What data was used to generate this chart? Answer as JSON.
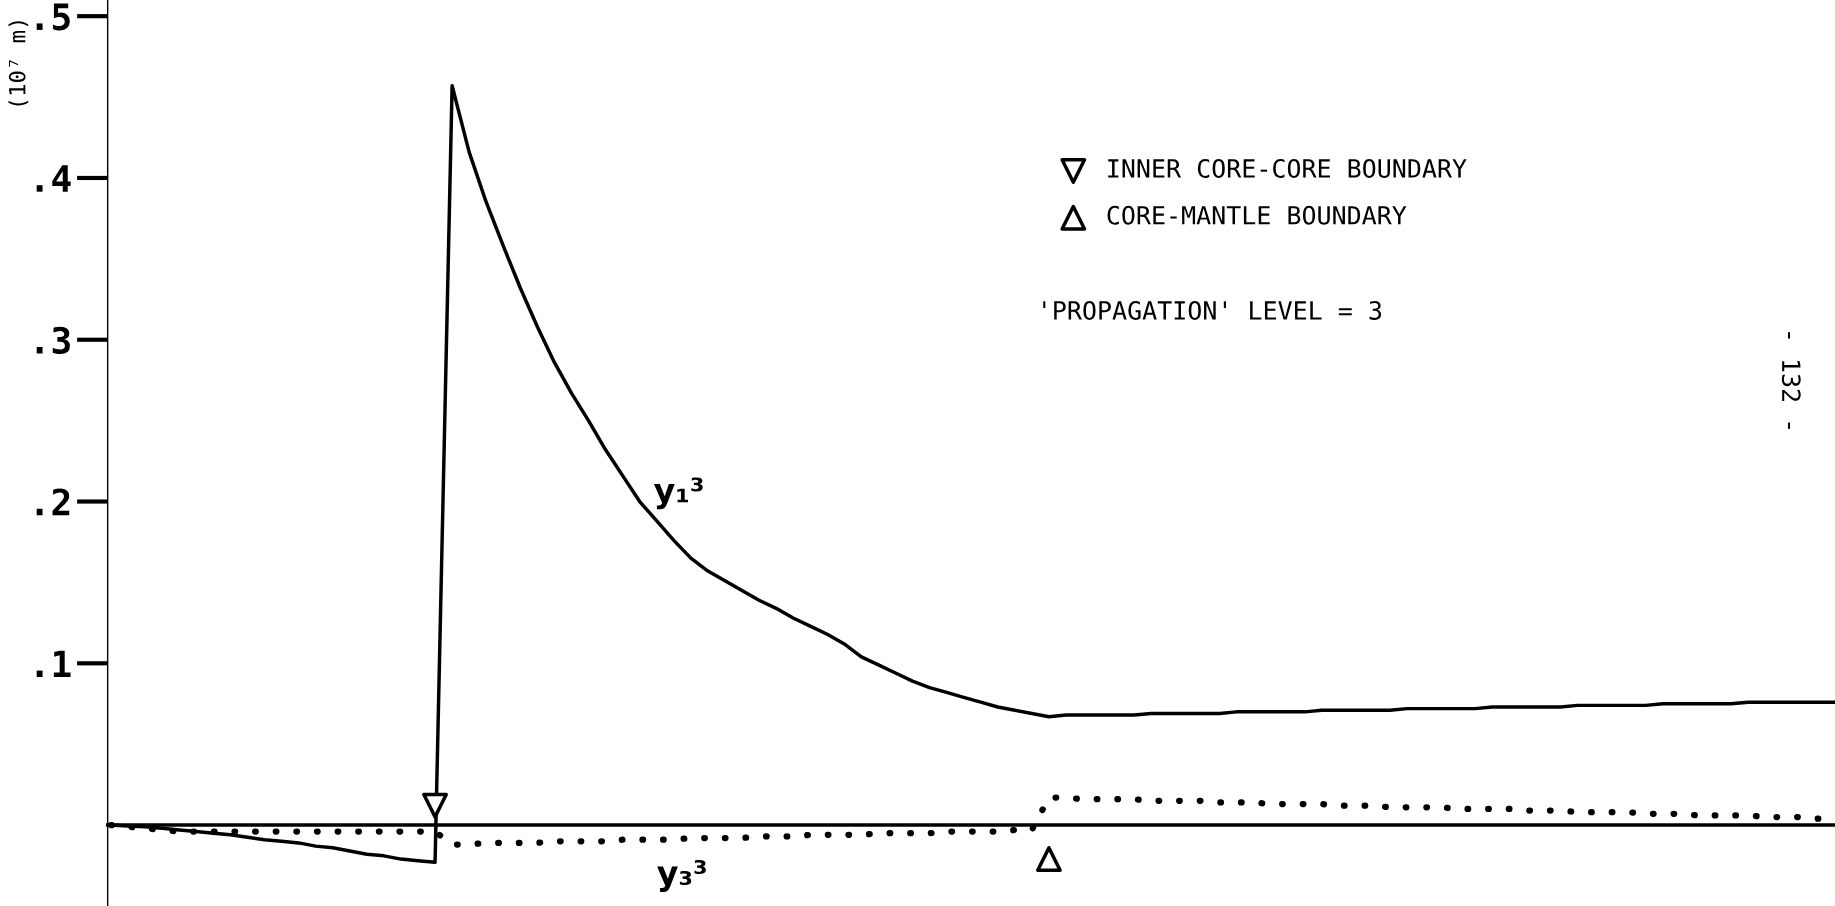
{
  "chart_data": {
    "type": "line",
    "ylabel": "(10⁷ m)",
    "categories": [
      null,
      null,
      null,
      null,
      null,
      null,
      null,
      null,
      null,
      null,
      null,
      null,
      null,
      null,
      null,
      null,
      null,
      null,
      null,
      null,
      null,
      null,
      null,
      null,
      null,
      null,
      null,
      null,
      null,
      null,
      null,
      null,
      null,
      null,
      null,
      null,
      null,
      null,
      null,
      null,
      null,
      null,
      null,
      null,
      null,
      null,
      null,
      null,
      null,
      null,
      null,
      null,
      null,
      null,
      null,
      null,
      null,
      null,
      null,
      null,
      null,
      null,
      null,
      null,
      null,
      null,
      null,
      null,
      null,
      null,
      null,
      null,
      null,
      null,
      null,
      null,
      null,
      null,
      null,
      null,
      null,
      null,
      null,
      null,
      null,
      null,
      null,
      null,
      null,
      null,
      null,
      null,
      null,
      null,
      null,
      null,
      null,
      null,
      null,
      null,
      null,
      null
    ],
    "series": [
      {
        "name": "y₁³",
        "color": "#000000",
        "line_style": "solid",
        "values": [
          0,
          -0.0005,
          -0.001,
          -0.002,
          -0.003,
          -0.004,
          -0.005,
          -0.006,
          -0.0075,
          -0.009,
          -0.01,
          -0.011,
          -0.013,
          -0.014,
          -0.016,
          -0.018,
          -0.019,
          -0.021,
          -0.022,
          -0.023,
          0.457,
          0.416,
          0.385,
          0.358,
          0.332,
          0.308,
          0.286,
          0.267,
          0.25,
          0.232,
          0.216,
          0.2,
          0.188,
          0.176,
          0.165,
          0.157,
          0.151,
          0.145,
          0.139,
          0.134,
          0.128,
          0.123,
          0.118,
          0.112,
          0.104,
          0.099,
          0.094,
          0.089,
          0.085,
          0.082,
          0.079,
          0.076,
          0.073,
          0.071,
          0.069,
          0.067,
          0.068,
          0.068,
          0.068,
          0.068,
          0.068,
          0.069,
          0.069,
          0.069,
          0.069,
          0.069,
          0.07,
          0.07,
          0.07,
          0.07,
          0.07,
          0.071,
          0.071,
          0.071,
          0.071,
          0.071,
          0.072,
          0.072,
          0.072,
          0.072,
          0.072,
          0.073,
          0.073,
          0.073,
          0.073,
          0.073,
          0.074,
          0.074,
          0.074,
          0.074,
          0.074,
          0.075,
          0.075,
          0.075,
          0.075,
          0.075,
          0.076,
          0.076,
          0.076,
          0.076,
          0.076,
          0.076
        ]
      },
      {
        "name": "y₃³",
        "color": "#000000",
        "line_style": "dotted",
        "values": [
          0,
          -0.001,
          -0.002,
          -0.003,
          -0.004,
          -0.004,
          -0.004,
          -0.004,
          -0.004,
          -0.004,
          -0.004,
          -0.004,
          -0.004,
          -0.004,
          -0.004,
          -0.004,
          -0.004,
          -0.004,
          -0.004,
          -0.004,
          -0.012,
          -0.012,
          -0.011,
          -0.011,
          -0.011,
          -0.011,
          -0.01,
          -0.01,
          -0.01,
          -0.01,
          -0.009,
          -0.009,
          -0.009,
          -0.009,
          -0.008,
          -0.008,
          -0.008,
          -0.008,
          -0.007,
          -0.007,
          -0.007,
          -0.006,
          -0.006,
          -0.006,
          -0.006,
          -0.005,
          -0.005,
          -0.005,
          -0.005,
          -0.004,
          -0.004,
          -0.004,
          -0.004,
          -0.003,
          -0.003,
          0.017,
          0.017,
          0.016,
          0.016,
          0.016,
          0.016,
          0.015,
          0.015,
          0.015,
          0.015,
          0.014,
          0.014,
          0.014,
          0.013,
          0.013,
          0.013,
          0.013,
          0.012,
          0.012,
          0.012,
          0.011,
          0.011,
          0.011,
          0.011,
          0.01,
          0.01,
          0.01,
          0.01,
          0.009,
          0.009,
          0.009,
          0.008,
          0.008,
          0.008,
          0.008,
          0.007,
          0.007,
          0.007,
          0.006,
          0.006,
          0.006,
          0.006,
          0.005,
          0.005,
          0.005,
          0.004,
          0.004
        ]
      },
      {
        "name": "INNER CORE-CORE BOUNDARY",
        "type": "scatter",
        "marker": "triangle",
        "color": "#000000",
        "values": [
          null,
          null,
          null,
          null,
          null,
          null,
          null,
          null,
          null,
          null,
          null,
          null,
          null,
          null,
          null,
          null,
          null,
          null,
          null,
          0.012,
          null,
          null,
          null,
          null,
          null,
          null,
          null,
          null,
          null,
          null,
          null,
          null,
          null,
          null,
          null,
          null,
          null,
          null,
          null,
          null,
          null,
          null,
          null,
          null,
          null,
          null,
          null,
          null,
          null,
          null,
          null,
          null,
          null,
          null,
          null,
          null,
          null,
          null,
          null,
          null,
          null,
          null,
          null,
          null,
          null,
          null,
          null,
          null,
          null,
          null,
          null,
          null,
          null,
          null,
          null,
          null,
          null,
          null,
          null,
          null,
          null,
          null,
          null,
          null,
          null,
          null,
          null,
          null,
          null,
          null,
          null,
          null,
          null,
          null,
          null,
          null,
          null,
          null,
          null,
          null,
          null,
          null
        ]
      },
      {
        "name": "CORE-MANTLE BOUNDARY",
        "type": "scatter",
        "marker": "triangle",
        "color": "#000000",
        "values": [
          null,
          null,
          null,
          null,
          null,
          null,
          null,
          null,
          null,
          null,
          null,
          null,
          null,
          null,
          null,
          null,
          null,
          null,
          null,
          null,
          null,
          null,
          null,
          null,
          null,
          null,
          null,
          null,
          null,
          null,
          null,
          null,
          null,
          null,
          null,
          null,
          null,
          null,
          null,
          null,
          null,
          null,
          null,
          null,
          null,
          null,
          null,
          null,
          null,
          null,
          null,
          null,
          null,
          null,
          null,
          -0.021,
          null,
          null,
          null,
          null,
          null,
          null,
          null,
          null,
          null,
          null,
          null,
          null,
          null,
          null,
          null,
          null,
          null,
          null,
          null,
          null,
          null,
          null,
          null,
          null,
          null,
          null,
          null,
          null,
          null,
          null,
          null,
          null,
          null,
          null,
          null,
          null,
          null,
          null,
          null,
          null,
          null,
          null,
          null,
          null,
          null,
          null
        ]
      }
    ],
    "ylim": [
      -0.05,
      0.51
    ],
    "yticks": [
      {
        "value": 0.1,
        "label": ".1"
      },
      {
        "value": 0.2,
        "label": ".2"
      },
      {
        "value": 0.3,
        "label": ".3"
      },
      {
        "value": 0.4,
        "label": ".4"
      },
      {
        "value": 0.5,
        "label": ".5"
      }
    ],
    "tick_labels": "y",
    "grid": false,
    "legend": "top right",
    "annotations": [
      "'PROPAGATION' LEVEL = 3",
      "- 132 -"
    ]
  }
}
